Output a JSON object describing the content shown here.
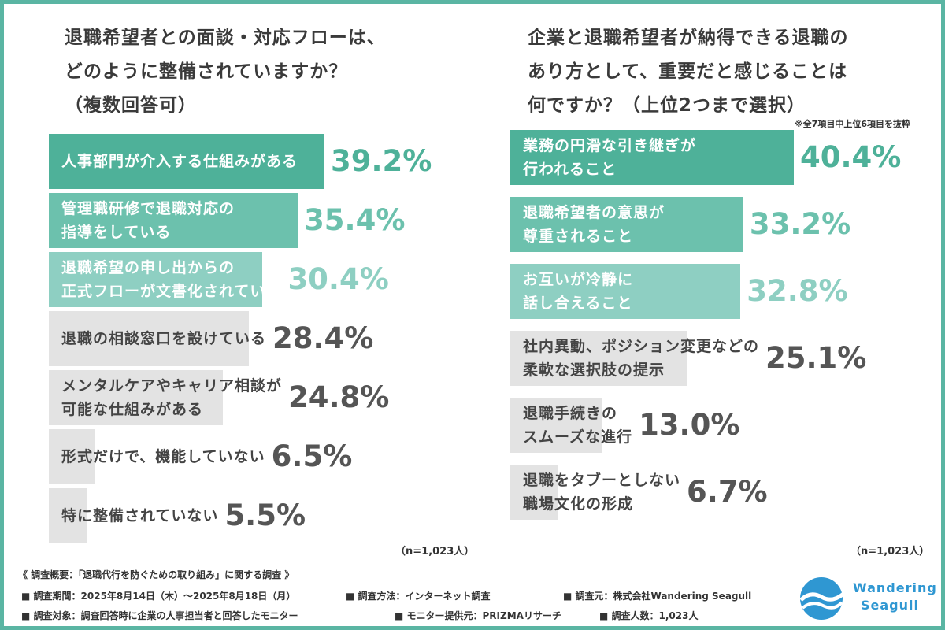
{
  "chart_data": [
    {
      "type": "bar",
      "title_lines": [
        "退職希望者との面談・対応フローは、",
        "どのように整備されていますか？",
        "（複数回答可）"
      ],
      "categories": [
        [
          "人事部門が介入する仕組みがある"
        ],
        [
          "管理職研修で退職対応の",
          "指導をしている"
        ],
        [
          "退職希望の申し出からの",
          "正式フローが文書化されている"
        ],
        [
          "退職の相談窓口を設けている"
        ],
        [
          "メンタルケアやキャリア相談が",
          "可能な仕組みがある"
        ],
        [
          "形式だけで、機能していない"
        ],
        [
          "特に整備されていない"
        ]
      ],
      "values": [
        39.2,
        35.4,
        30.4,
        28.4,
        24.8,
        6.5,
        5.5
      ],
      "value_labels": [
        "39.2%",
        "35.4%",
        "30.4%",
        "28.4%",
        "24.8%",
        "6.5%",
        "5.5%"
      ],
      "colors": [
        "#4eb199",
        "#6cc1ad",
        "#8ecfc2",
        "#e3e3e3",
        "#e3e3e3",
        "#e3e3e3",
        "#e3e3e3"
      ],
      "note": "",
      "n_label": "（n=1,023人）"
    },
    {
      "type": "bar",
      "title_lines": [
        "企業と退職希望者が納得できる退職の",
        "あり方として、重要だと感じることは",
        "何ですか？（上位2つまで選択）"
      ],
      "categories": [
        [
          "業務の円滑な引き継ぎが",
          "行われること"
        ],
        [
          "退職希望者の意思が",
          "尊重されること"
        ],
        [
          "お互いが冷静に",
          "話し合えること"
        ],
        [
          "社内異動、ポジション変更などの",
          "柔軟な選択肢の提示"
        ],
        [
          "退職手続きの",
          "スムーズな進行"
        ],
        [
          "退職をタブーとしない",
          "職場文化の形成"
        ]
      ],
      "values": [
        40.4,
        33.2,
        32.8,
        25.1,
        13.0,
        6.7
      ],
      "value_labels": [
        "40.4%",
        "33.2%",
        "32.8%",
        "25.1%",
        "13.0%",
        "6.7%"
      ],
      "colors": [
        "#4eb199",
        "#6cc1ad",
        "#8ecfc2",
        "#e3e3e3",
        "#e3e3e3",
        "#e3e3e3"
      ],
      "note": "※全7項目中上位6項目を抜粋",
      "n_label": "（n=1,023人）"
    }
  ],
  "footer": {
    "heading": "《 調査概要：「退職代行を防ぐための取り組み」に関する調査 》",
    "line1": [
      "■ 調査期間：2025年8月14日（木）〜2025年8月18日（月）",
      "■ 調査方法：インターネット調査",
      "■ 調査元：株式会社Wandering Seagull"
    ],
    "line2": [
      "■ 調査対象：調査回答時に企業の人事担当者と回答したモニター",
      "■ モニター提供元：PRIZMAリサーチ",
      "■ 調査人数：1,023人"
    ]
  },
  "logo": {
    "lines": [
      "Wandering",
      "Seagull"
    ],
    "icon": "wave-logo-icon",
    "color": "#2f97d2"
  }
}
